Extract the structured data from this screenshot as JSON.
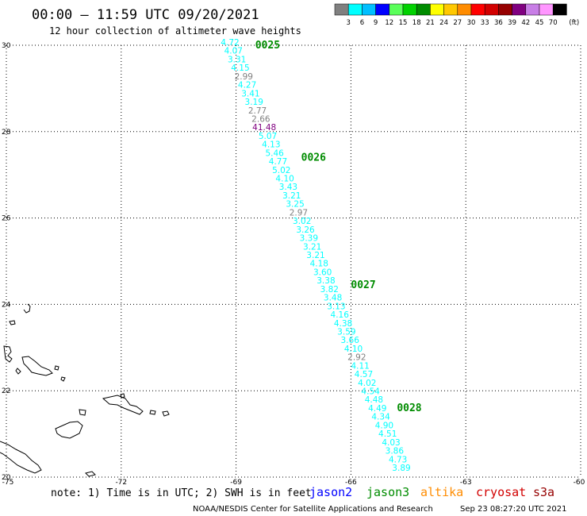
{
  "header": {
    "title": "00:00 – 11:59 UTC 09/20/2021",
    "subtitle": "12 hour collection of altimeter wave heights"
  },
  "legend": {
    "colors": [
      "#808080",
      "#00ffff",
      "#00bfff",
      "#0000ff",
      "#5aff5a",
      "#00d200",
      "#008c00",
      "#ffff00",
      "#ffc800",
      "#ff8c00",
      "#ff0000",
      "#d20000",
      "#960000",
      "#800080",
      "#c87ee6",
      "#ff96ff",
      "#000000"
    ],
    "labels": [
      "3",
      "6",
      "9",
      "12",
      "15",
      "18",
      "21",
      "24",
      "27",
      "30",
      "33",
      "36",
      "39",
      "42",
      "45",
      "70"
    ],
    "unit": "(ft)"
  },
  "map": {
    "lon_ticks": [
      "-75",
      "-72",
      "-69",
      "-66",
      "-63",
      "-60"
    ],
    "lat_ticks": [
      "30",
      "28",
      "26",
      "24",
      "22",
      "20"
    ],
    "lon_range": [
      -75,
      -60
    ],
    "lat_range": [
      20,
      30
    ]
  },
  "swh_readings": [
    {
      "v": "4.72",
      "c": "#00ffff"
    },
    {
      "v": "4.07",
      "c": "#00ffff"
    },
    {
      "v": "3.31",
      "c": "#00ffff"
    },
    {
      "v": "4.15",
      "c": "#00ffff"
    },
    {
      "v": "2.99",
      "c": "#808080"
    },
    {
      "v": "4.27",
      "c": "#00ffff"
    },
    {
      "v": "3.41",
      "c": "#00ffff"
    },
    {
      "v": "3.19",
      "c": "#00ffff"
    },
    {
      "v": "2.77",
      "c": "#808080"
    },
    {
      "v": "2.66",
      "c": "#808080"
    },
    {
      "v": "41.48",
      "c": "#800080"
    },
    {
      "v": "5.07",
      "c": "#00ffff"
    },
    {
      "v": "4.13",
      "c": "#00ffff"
    },
    {
      "v": "5.46",
      "c": "#00ffff"
    },
    {
      "v": "4.77",
      "c": "#00ffff"
    },
    {
      "v": "5.02",
      "c": "#00ffff"
    },
    {
      "v": "4.10",
      "c": "#00ffff"
    },
    {
      "v": "3.43",
      "c": "#00ffff"
    },
    {
      "v": "3.21",
      "c": "#00ffff"
    },
    {
      "v": "3.25",
      "c": "#00ffff"
    },
    {
      "v": "2.97",
      "c": "#808080"
    },
    {
      "v": "3.02",
      "c": "#00ffff"
    },
    {
      "v": "3.26",
      "c": "#00ffff"
    },
    {
      "v": "3.39",
      "c": "#00ffff"
    },
    {
      "v": "3.21",
      "c": "#00ffff"
    },
    {
      "v": "3.21",
      "c": "#00ffff"
    },
    {
      "v": "4.18",
      "c": "#00ffff"
    },
    {
      "v": "3.60",
      "c": "#00ffff"
    },
    {
      "v": "3.38",
      "c": "#00ffff"
    },
    {
      "v": "3.82",
      "c": "#00ffff"
    },
    {
      "v": "3.48",
      "c": "#00ffff"
    },
    {
      "v": "3.13",
      "c": "#00ffff"
    },
    {
      "v": "4.16",
      "c": "#00ffff"
    },
    {
      "v": "4.38",
      "c": "#00ffff"
    },
    {
      "v": "3.59",
      "c": "#00ffff"
    },
    {
      "v": "3.66",
      "c": "#00ffff"
    },
    {
      "v": "4.10",
      "c": "#00ffff"
    },
    {
      "v": "2.92",
      "c": "#808080"
    },
    {
      "v": "4.11",
      "c": "#00ffff"
    },
    {
      "v": "4.57",
      "c": "#00ffff"
    },
    {
      "v": "4.02",
      "c": "#00ffff"
    },
    {
      "v": "4.54",
      "c": "#00ffff"
    },
    {
      "v": "4.48",
      "c": "#00ffff"
    },
    {
      "v": "4.49",
      "c": "#00ffff"
    },
    {
      "v": "4.34",
      "c": "#00ffff"
    },
    {
      "v": "4.90",
      "c": "#00ffff"
    },
    {
      "v": "4.51",
      "c": "#00ffff"
    },
    {
      "v": "4.03",
      "c": "#00ffff"
    },
    {
      "v": "3.86",
      "c": "#00ffff"
    },
    {
      "v": "4.73",
      "c": "#00ffff"
    },
    {
      "v": "3.89",
      "c": "#00ffff"
    }
  ],
  "pass_labels": [
    {
      "text": "0025",
      "lat": 30.0,
      "lon": -68.5
    },
    {
      "text": "0026",
      "lat": 27.4,
      "lon": -67.3
    },
    {
      "text": "0027",
      "lat": 24.45,
      "lon": -66.0
    },
    {
      "text": "0028",
      "lat": 21.6,
      "lon": -64.8
    }
  ],
  "pass_color": "#008c00",
  "footer": {
    "note": "note: 1) Time is in UTC; 2) SWH is in feet",
    "satellites": [
      {
        "name": "jason2",
        "color": "#0000ff"
      },
      {
        "name": "jason3",
        "color": "#008c00"
      },
      {
        "name": "altika",
        "color": "#ff8c00"
      },
      {
        "name": "cryosat",
        "color": "#d20000"
      },
      {
        "name": "s3a",
        "color": "#960000"
      }
    ],
    "credit": "NOAA/NESDIS Center for Satellite Applications and Research",
    "timestamp": "Sep 23 08:27:20 UTC 2021"
  }
}
